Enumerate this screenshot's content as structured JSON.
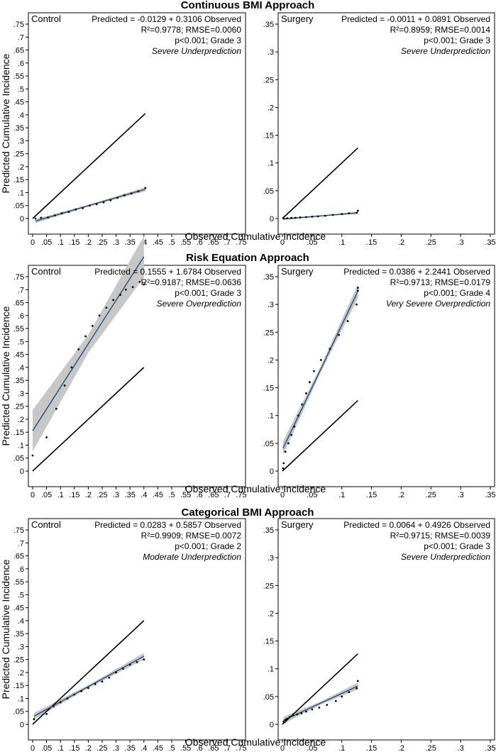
{
  "chart_data": [
    {
      "type": "scatter",
      "title": "Continuous BMI Approach",
      "xlabel": "Observed Cumulative Incidence",
      "ylabel": "Predicted Cumulative Incidence",
      "panels": [
        {
          "label": "Control",
          "xlim": [
            0,
            0.75
          ],
          "ylim": [
            0,
            0.75
          ],
          "ticks": [
            "0",
            ".05",
            ".1",
            ".15",
            ".2",
            ".25",
            ".3",
            ".35",
            ".4",
            ".45",
            ".5",
            ".55",
            ".6",
            ".65",
            ".7",
            ".75"
          ],
          "tick_values": [
            0,
            0.05,
            0.1,
            0.15,
            0.2,
            0.25,
            0.3,
            0.35,
            0.4,
            0.45,
            0.5,
            0.55,
            0.6,
            0.65,
            0.7,
            0.75
          ],
          "equation": "Predicted = -0.0129 + 0.3106 Observed",
          "fit": "R²=0.9778; RMSE=0.0060",
          "pvalue": "p<0.001; Grade 3",
          "grade": "Severe Underprediction",
          "intercept": -0.0129,
          "slope": 0.3106,
          "ci": 0.005,
          "x": [
            0.01,
            0.03,
            0.055,
            0.08,
            0.105,
            0.13,
            0.155,
            0.18,
            0.205,
            0.23,
            0.255,
            0.28,
            0.305,
            0.33,
            0.355,
            0.38,
            0.405
          ],
          "y": [
            0.0,
            0.003,
            0.004,
            0.012,
            0.02,
            0.025,
            0.035,
            0.04,
            0.05,
            0.055,
            0.062,
            0.07,
            0.08,
            0.09,
            0.097,
            0.105,
            0.118
          ]
        },
        {
          "label": "Surgery",
          "xlim": [
            0,
            0.35
          ],
          "ylim": [
            0,
            0.35
          ],
          "ticks": [
            "0",
            ".05",
            ".1",
            ".15",
            ".2",
            ".25",
            ".3",
            ".35"
          ],
          "tick_values": [
            0,
            0.05,
            0.1,
            0.15,
            0.2,
            0.25,
            0.3,
            0.35
          ],
          "equation": "Predicted = -0.0011 + 0.0891 Observed",
          "fit": "R²=0.8959; RMSE=0.0014",
          "pvalue": "p<0.001; Grade 3",
          "grade": "Severe Underprediction",
          "intercept": -0.0011,
          "slope": 0.0891,
          "ci": 0.0012,
          "x": [
            0.002,
            0.008,
            0.015,
            0.022,
            0.03,
            0.04,
            0.05,
            0.06,
            0.072,
            0.085,
            0.1,
            0.112,
            0.125,
            0.127
          ],
          "y": [
            0.0,
            0.0005,
            0.001,
            0.0013,
            0.002,
            0.0025,
            0.0033,
            0.004,
            0.005,
            0.0065,
            0.008,
            0.0095,
            0.0105,
            0.014
          ]
        }
      ]
    },
    {
      "type": "scatter",
      "title": "Risk Equation Approach",
      "xlabel": "Observed Cumulative Incidence",
      "ylabel": "Predicted Cumulative Incidence",
      "panels": [
        {
          "label": "Control",
          "xlim": [
            0,
            0.75
          ],
          "ylim": [
            0,
            0.75
          ],
          "ticks": [
            "0",
            ".05",
            ".1",
            ".15",
            ".2",
            ".25",
            ".3",
            ".35",
            ".4",
            ".45",
            ".5",
            ".55",
            ".6",
            ".65",
            ".7",
            ".75"
          ],
          "tick_values": [
            0,
            0.05,
            0.1,
            0.15,
            0.2,
            0.25,
            0.3,
            0.35,
            0.4,
            0.45,
            0.5,
            0.55,
            0.6,
            0.65,
            0.7,
            0.75
          ],
          "equation": "Predicted = 0.1555 + 1.6784 Observed",
          "fit": "R²=0.9187; RMSE=0.0636",
          "pvalue": "p<0.001; Grade 3",
          "grade": "Severe Overprediction",
          "intercept": 0.1555,
          "slope": 1.6784,
          "ci": 0.05,
          "x": [
            0.0,
            0.05,
            0.085,
            0.115,
            0.14,
            0.165,
            0.19,
            0.215,
            0.24,
            0.265,
            0.29,
            0.315,
            0.335,
            0.36,
            0.385,
            0.4
          ],
          "y": [
            0.06,
            0.13,
            0.24,
            0.33,
            0.4,
            0.47,
            0.52,
            0.56,
            0.6,
            0.63,
            0.66,
            0.68,
            0.7,
            0.71,
            0.73,
            0.72
          ]
        },
        {
          "label": "Surgery",
          "xlim": [
            0,
            0.35
          ],
          "ylim": [
            0,
            0.35
          ],
          "ticks": [
            "0",
            ".05",
            ".1",
            ".15",
            ".2",
            ".25",
            ".3",
            ".35"
          ],
          "tick_values": [
            0,
            0.05,
            0.1,
            0.15,
            0.2,
            0.25,
            0.3,
            0.35
          ],
          "equation": "Predicted = 0.0386 + 2.2441 Observed",
          "fit": "R²=0.9713; RMSE=0.0179",
          "pvalue": "p<0.001; Grade 4",
          "grade": "Very Severe Overprediction",
          "intercept": 0.0386,
          "slope": 2.2441,
          "ci": 0.008,
          "x": [
            0.001,
            0.002,
            0.005,
            0.01,
            0.015,
            0.02,
            0.027,
            0.033,
            0.04,
            0.046,
            0.053,
            0.065,
            0.08,
            0.095,
            0.11,
            0.125,
            0.127,
            0.127
          ],
          "y": [
            0.005,
            0.014,
            0.035,
            0.05,
            0.065,
            0.08,
            0.1,
            0.12,
            0.14,
            0.16,
            0.18,
            0.2,
            0.22,
            0.245,
            0.27,
            0.3,
            0.325,
            0.33
          ]
        }
      ]
    },
    {
      "type": "scatter",
      "title": "Categorical BMI Approach",
      "xlabel": "Observed Cumulative Incidence",
      "ylabel": "Predicted Cumulative Incidence",
      "panels": [
        {
          "label": "Control",
          "xlim": [
            0,
            0.75
          ],
          "ylim": [
            0,
            0.75
          ],
          "ticks": [
            "0",
            ".05",
            ".1",
            ".15",
            ".2",
            ".25",
            ".3",
            ".35",
            ".4",
            ".45",
            ".5",
            ".55",
            ".6",
            ".65",
            ".7",
            ".75"
          ],
          "tick_values": [
            0,
            0.05,
            0.1,
            0.15,
            0.2,
            0.25,
            0.3,
            0.35,
            0.4,
            0.45,
            0.5,
            0.55,
            0.6,
            0.65,
            0.7,
            0.75
          ],
          "equation": "Predicted = 0.0283 + 0.5857 Observed",
          "fit": "R²=0.9909; RMSE=0.0072",
          "pvalue": "p<0.001; Grade 2",
          "grade": "Moderate Underprediction",
          "intercept": 0.0283,
          "slope": 0.5857,
          "ci": 0.008,
          "x": [
            0.005,
            0.05,
            0.075,
            0.1,
            0.125,
            0.15,
            0.175,
            0.2,
            0.225,
            0.25,
            0.275,
            0.3,
            0.325,
            0.35,
            0.375,
            0.4
          ],
          "y": [
            0.02,
            0.04,
            0.07,
            0.085,
            0.1,
            0.115,
            0.128,
            0.14,
            0.155,
            0.165,
            0.18,
            0.2,
            0.215,
            0.23,
            0.24,
            0.25
          ]
        },
        {
          "label": "Surgery",
          "xlim": [
            0,
            0.35
          ],
          "ylim": [
            0,
            0.35
          ],
          "ticks": [
            "0",
            ".05",
            ".1",
            ".15",
            ".2",
            ".25",
            ".3",
            ".35"
          ],
          "tick_values": [
            0,
            0.05,
            0.1,
            0.15,
            0.2,
            0.25,
            0.3,
            0.35
          ],
          "equation": "Predicted = 0.0064 + 0.4926 Observed",
          "fit": "R²=0.9715; RMSE=0.0039",
          "pvalue": "p<0.001; Grade 3",
          "grade": "Severe Underprediction",
          "intercept": 0.0064,
          "slope": 0.4926,
          "ci": 0.004,
          "x": [
            0.002,
            0.005,
            0.008,
            0.012,
            0.018,
            0.025,
            0.032,
            0.04,
            0.05,
            0.062,
            0.075,
            0.09,
            0.1,
            0.112,
            0.125,
            0.127
          ],
          "y": [
            0.005,
            0.008,
            0.01,
            0.013,
            0.016,
            0.018,
            0.02,
            0.023,
            0.027,
            0.03,
            0.035,
            0.042,
            0.05,
            0.058,
            0.065,
            0.078
          ]
        }
      ]
    }
  ],
  "colors": {
    "fit_line": "#1f4e79",
    "ci_band": "#c7c7c7",
    "reference_line": "#000000",
    "points": "#000000"
  }
}
